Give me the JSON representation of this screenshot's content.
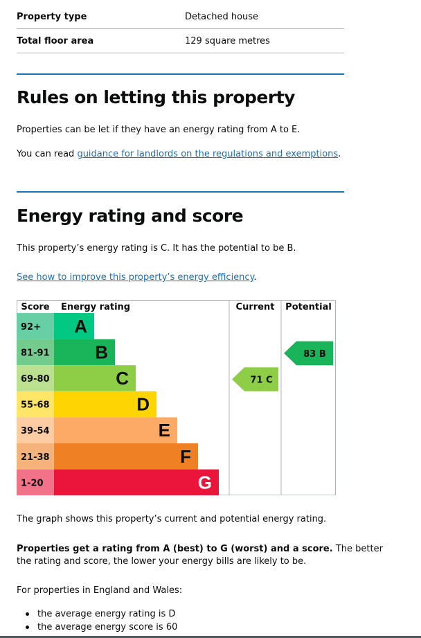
{
  "summary": [
    {
      "key": "Property type",
      "value": "Detached house"
    },
    {
      "key": "Total floor area",
      "value": "129 square metres"
    }
  ],
  "letting": {
    "heading": "Rules on letting this property",
    "para1": "Properties can be let if they have an energy rating from A to E.",
    "para2_prefix": "You can read ",
    "para2_link": "guidance for landlords on the regulations and exemptions",
    "para2_suffix": "."
  },
  "energy": {
    "heading": "Energy rating and score",
    "para1": "This property’s energy rating is C. It has the potential to be B.",
    "improve_link": "See how to improve this property’s energy efficiency",
    "improve_suffix": ".",
    "graph_note": "The graph shows this property’s current and potential energy rating.",
    "scale_bold": "Properties get a rating from A (best) to G (worst) and a score.",
    "scale_rest_line1": " The better",
    "scale_rest_line2": "the rating and score, the lower your energy bills are likely to be.",
    "region_intro": "For properties in England and Wales:",
    "bullets": [
      "the average energy rating is D",
      "the average energy score is 60"
    ]
  },
  "chart_data": {
    "type": "table",
    "headers": {
      "score": "Score",
      "rating": "Energy rating",
      "current": "Current",
      "potential": "Potential"
    },
    "bands": [
      {
        "letter": "A",
        "range": "92+",
        "color": "#00c781",
        "light": "#66cfa3"
      },
      {
        "letter": "B",
        "range": "81-91",
        "color": "#19b459",
        "light": "#74cb8e"
      },
      {
        "letter": "C",
        "range": "69-80",
        "color": "#8dce46",
        "light": "#bbe190"
      },
      {
        "letter": "D",
        "range": "55-68",
        "color": "#ffd500",
        "light": "#ffe566"
      },
      {
        "letter": "E",
        "range": "39-54",
        "color": "#fcaa65",
        "light": "#fdcca3"
      },
      {
        "letter": "F",
        "range": "21-38",
        "color": "#ef8023",
        "light": "#f5b37b"
      },
      {
        "letter": "G",
        "range": "1-20",
        "color": "#e9153b",
        "light": "#f27389"
      }
    ],
    "current": {
      "score": 71,
      "band": "C",
      "label": "71 C",
      "color": "#8dce46"
    },
    "potential": {
      "score": 83,
      "band": "B",
      "label": "83 B",
      "color": "#19b459"
    }
  }
}
